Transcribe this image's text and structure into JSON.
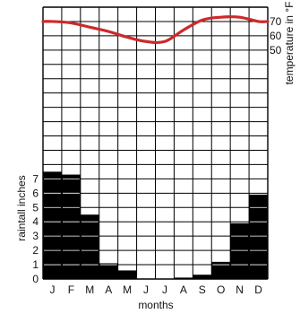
{
  "chart_data": {
    "type": "bar+line",
    "categories": [
      "J",
      "F",
      "M",
      "A",
      "M",
      "J",
      "J",
      "A",
      "S",
      "O",
      "N",
      "D"
    ],
    "xlabel": "months",
    "rainfall": {
      "ylabel": "raintall inches",
      "yticks": [
        0,
        1,
        2,
        3,
        4,
        5,
        6,
        7
      ],
      "ylim": [
        0,
        7.8
      ],
      "values": [
        7.5,
        7.3,
        4.5,
        1.1,
        0.6,
        0.0,
        0.0,
        0.1,
        0.3,
        1.2,
        3.9,
        5.9
      ],
      "color": "#000000"
    },
    "temperature": {
      "ylabel": "temperature in °F",
      "yticks": [
        50,
        60,
        70
      ],
      "values": [
        70,
        69,
        66,
        63,
        59,
        56,
        56,
        64,
        71,
        73,
        73,
        70
      ],
      "color": "#cc2a2a"
    },
    "grid": true
  }
}
